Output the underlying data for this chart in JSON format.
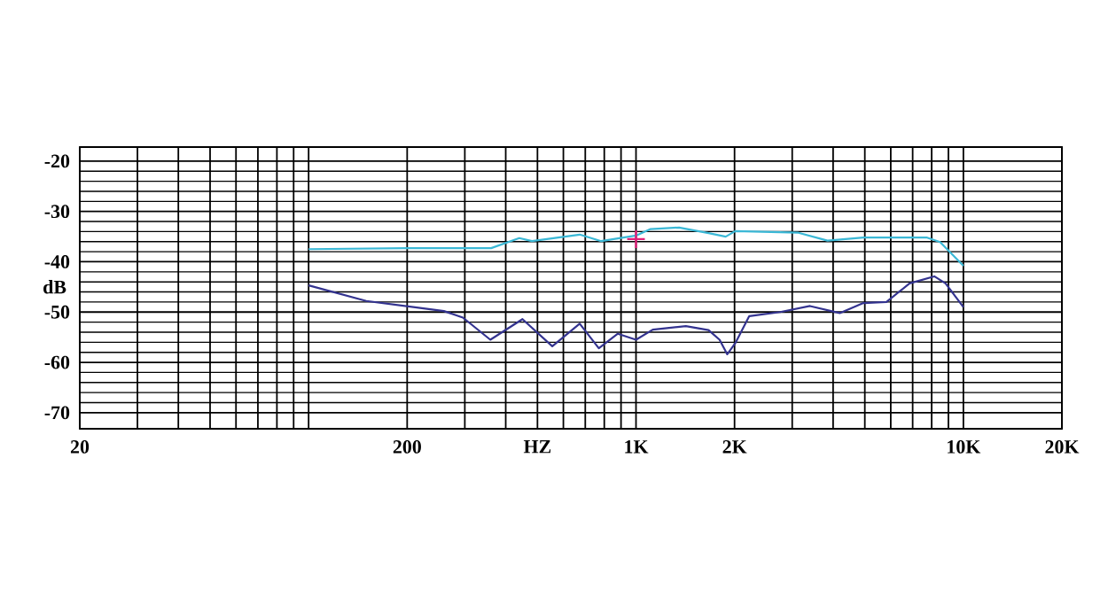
{
  "chart_data": {
    "type": "line",
    "xlabel": "HZ",
    "ylabel": "dB",
    "log": "x",
    "grid": true,
    "xlim": [
      20,
      20000
    ],
    "ylim": [
      -73.2,
      -17.2
    ],
    "xticks": [
      20,
      {
        "value": 30,
        "label": null
      },
      {
        "value": 40,
        "label": null
      },
      {
        "value": 50,
        "label": null
      },
      {
        "value": 60,
        "label": null
      },
      {
        "value": 70,
        "label": null
      },
      {
        "value": 80,
        "label": null
      },
      {
        "value": 90,
        "label": null
      },
      {
        "value": 100,
        "label": null
      },
      200,
      {
        "value": 300,
        "label": null
      },
      {
        "value": 400,
        "label": null
      },
      {
        "value": 500,
        "label": null
      },
      {
        "value": 600,
        "label": null
      },
      {
        "value": 700,
        "label": null
      },
      {
        "value": 800,
        "label": null
      },
      {
        "value": 900,
        "label": null
      },
      {
        "value": 1000,
        "label": "1K"
      },
      {
        "value": 2000,
        "label": "2K"
      },
      {
        "value": 3000,
        "label": null
      },
      {
        "value": 4000,
        "label": null
      },
      {
        "value": 5000,
        "label": null
      },
      {
        "value": 6000,
        "label": null
      },
      {
        "value": 7000,
        "label": null
      },
      {
        "value": 8000,
        "label": null
      },
      {
        "value": 9000,
        "label": null
      },
      {
        "value": 10000,
        "label": "10K"
      },
      {
        "value": 20000,
        "label": "20K"
      }
    ],
    "yticks": [
      -20,
      -30,
      -40,
      -50,
      -60,
      -70
    ],
    "series": [
      {
        "color": "#3bb8d6",
        "x": [
          100,
          200,
          361,
          440,
          481,
          673,
          783,
          1000,
          1108,
          1354,
          1666,
          1880,
          2010,
          3117,
          3846,
          4950,
          7750,
          8490,
          10000
        ],
        "values": [
          -37.5,
          -37.3,
          -37.3,
          -35.3,
          -35.9,
          -34.6,
          -35.9,
          -34.8,
          -33.5,
          -33.2,
          -34.3,
          -35.0,
          -33.9,
          -34.2,
          -35.8,
          -35.2,
          -35.2,
          -36.1,
          -40.8
        ]
      },
      {
        "color": "#33338f",
        "x": [
          100,
          150,
          209,
          259,
          296,
          359,
          450,
          555,
          673,
          770,
          880,
          1000,
          1125,
          1420,
          1666,
          1800,
          1900,
          2010,
          2218,
          2756,
          3400,
          4190,
          4950,
          5820,
          6850,
          8150,
          8820,
          10000
        ],
        "values": [
          -44.7,
          -47.8,
          -49.0,
          -49.8,
          -51.1,
          -55.5,
          -51.4,
          -56.8,
          -52.3,
          -57.2,
          -54.3,
          -55.5,
          -53.5,
          -52.8,
          -53.6,
          -55.5,
          -58.4,
          -56.2,
          -50.8,
          -50.0,
          -48.8,
          -50.2,
          -48.2,
          -48.0,
          -44.3,
          -42.9,
          -44.3,
          -49.0
        ]
      },
      {
        "type": "scatter",
        "marker": "cross",
        "color": "#e0207a",
        "x": [
          1000
        ],
        "values": [
          -35.5
        ]
      }
    ]
  }
}
